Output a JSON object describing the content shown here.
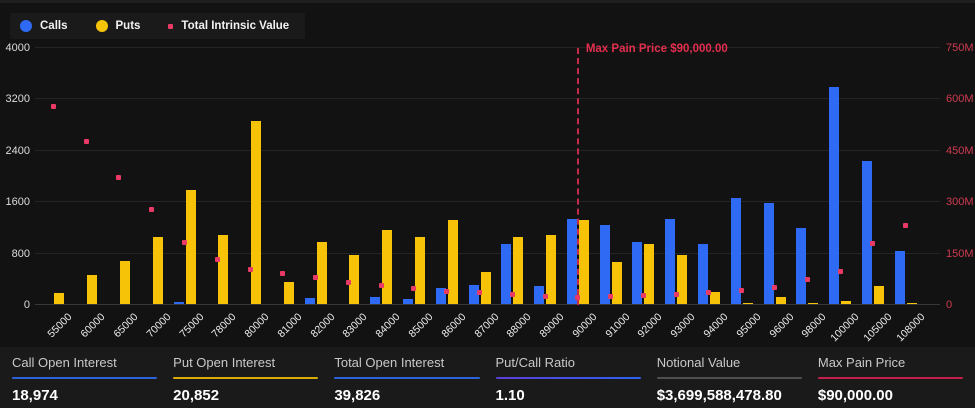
{
  "legend": [
    {
      "label": "Calls",
      "color": "#2f6af4",
      "shape": "circle"
    },
    {
      "label": "Puts",
      "color": "#f6c309",
      "shape": "circle"
    },
    {
      "label": "Total Intrinsic Value",
      "color": "#e83a64",
      "shape": "square"
    }
  ],
  "annotation": {
    "text": "Max Pain Price $90,000.00",
    "strike": "90000",
    "color": "#e42e4e"
  },
  "chart_data": {
    "type": "bar",
    "categories": [
      "55000",
      "60000",
      "65000",
      "70000",
      "75000",
      "78000",
      "80000",
      "81000",
      "82000",
      "83000",
      "84000",
      "85000",
      "86000",
      "87000",
      "88000",
      "89000",
      "90000",
      "91000",
      "92000",
      "93000",
      "94000",
      "95000",
      "96000",
      "98000",
      "100000",
      "105000",
      "108000"
    ],
    "series": [
      {
        "name": "Calls",
        "type": "bar",
        "axis": "left",
        "color": "#2f6af4",
        "values": [
          0,
          0,
          0,
          0,
          30,
          0,
          0,
          0,
          100,
          0,
          110,
          75,
          250,
          300,
          940,
          280,
          1320,
          1230,
          960,
          1320,
          940,
          1650,
          1570,
          1190,
          3380,
          2220,
          820
        ]
      },
      {
        "name": "Puts",
        "type": "bar",
        "axis": "left",
        "color": "#f6c309",
        "values": [
          170,
          450,
          670,
          1050,
          1780,
          1080,
          2850,
          350,
          970,
          760,
          1150,
          1050,
          1300,
          500,
          1040,
          1070,
          1300,
          650,
          930,
          770,
          190,
          20,
          110,
          15,
          40,
          280,
          20
        ]
      },
      {
        "name": "Total Intrinsic Value",
        "type": "scatter",
        "axis": "right",
        "color": "#e83a64",
        "values_millions": [
          575,
          475,
          370,
          275,
          180,
          130,
          100,
          88,
          76,
          62,
          54,
          44,
          37,
          33,
          27,
          21,
          18,
          22,
          25,
          27,
          35,
          40,
          48,
          72,
          95,
          176,
          230
        ]
      }
    ],
    "left_axis": {
      "ticks": [
        "0",
        "800",
        "1600",
        "2400",
        "3200",
        "4000"
      ],
      "max": 4000,
      "label_color": "#dcdcdc"
    },
    "right_axis": {
      "ticks": [
        "0",
        "150M",
        "300M",
        "450M",
        "600M",
        "750M"
      ],
      "max_millions": 750,
      "label_color": "#cf3b52"
    },
    "grid": "horizontal",
    "legend_position": "top-left",
    "max_pain_strike": "90000"
  },
  "stats": [
    {
      "label": "Call Open Interest",
      "value": "18,974",
      "underline": "#2d62d9"
    },
    {
      "label": "Put Open Interest",
      "value": "20,852",
      "underline": "#d9ab0b"
    },
    {
      "label": "Total Open Interest",
      "value": "39,826",
      "underline": "#2d62d9"
    },
    {
      "label": "Put/Call Ratio",
      "value": "1.10",
      "underline": "linear-gradient(90deg,#5b3fd8,#2d62f0)"
    },
    {
      "label": "Notional Value",
      "value": "$3,699,588,478.80",
      "underline": "#4f4f4f"
    },
    {
      "label": "Max Pain Price",
      "value": "$90,000.00",
      "underline": "#c21f4a"
    }
  ]
}
